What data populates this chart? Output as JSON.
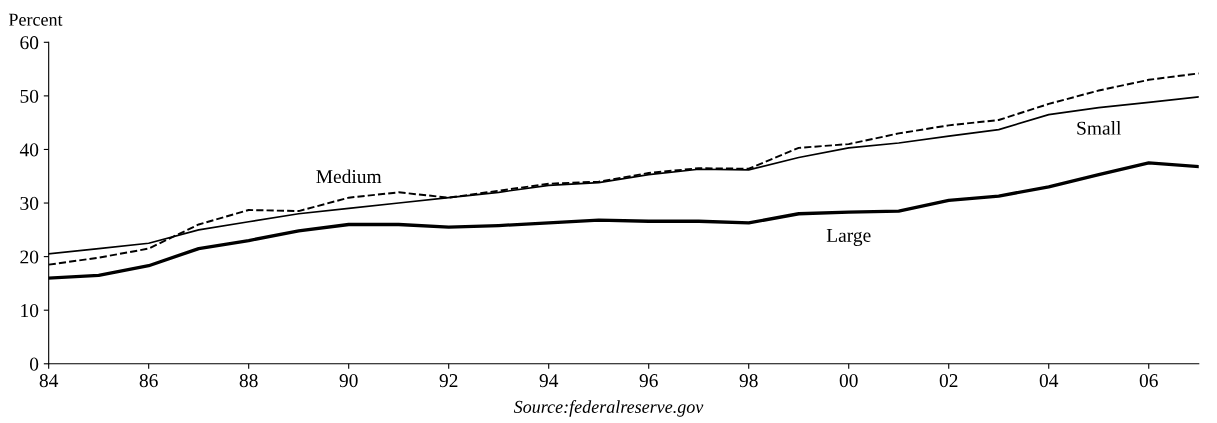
{
  "chart_data": {
    "type": "line",
    "ylabel": "Percent",
    "x": [
      1984,
      1985,
      1986,
      1987,
      1988,
      1989,
      1990,
      1991,
      1992,
      1993,
      1994,
      1995,
      1996,
      1997,
      1998,
      1999,
      2000,
      2001,
      2002,
      2003,
      2004,
      2005,
      2006,
      2007
    ],
    "series": [
      {
        "name": "Medium",
        "color": "#000000",
        "line_style": "dashed",
        "values": [
          18.5,
          19.8,
          21.5,
          26,
          28.7,
          28.5,
          31,
          32,
          31,
          32.3,
          33.6,
          34,
          35.6,
          36.5,
          36.4,
          40.3,
          41,
          43,
          44.5,
          45.5,
          48.5,
          51,
          53,
          54.2
        ]
      },
      {
        "name": "Small",
        "color": "#000000",
        "line_style": "solid",
        "values": [
          20.5,
          21.5,
          22.5,
          25,
          26.5,
          28,
          29,
          30,
          31,
          32,
          33.3,
          33.8,
          35.3,
          36.3,
          36.2,
          38.5,
          40.3,
          41.2,
          42.5,
          43.7,
          46.5,
          47.8,
          48.8,
          49.8
        ]
      },
      {
        "name": "Large",
        "color": "#000000",
        "line_style": "solid",
        "values": [
          16,
          16.5,
          18.3,
          21.5,
          23,
          24.8,
          26,
          26,
          25.5,
          25.8,
          26.3,
          26.8,
          26.6,
          26.6,
          26.3,
          28,
          28.3,
          28.5,
          30.5,
          31.3,
          33,
          35.3,
          37.5,
          36.8
        ]
      }
    ],
    "xlim": [
      1984,
      2007
    ],
    "xticks": [
      {
        "value": 1984,
        "label": "84"
      },
      {
        "value": 1986,
        "label": "86"
      },
      {
        "value": 1988,
        "label": "88"
      },
      {
        "value": 1990,
        "label": "90"
      },
      {
        "value": 1992,
        "label": "92"
      },
      {
        "value": 1994,
        "label": "94"
      },
      {
        "value": 1996,
        "label": "96"
      },
      {
        "value": 1998,
        "label": "98"
      },
      {
        "value": 2000,
        "label": "00"
      },
      {
        "value": 2002,
        "label": "02"
      },
      {
        "value": 2004,
        "label": "04"
      },
      {
        "value": 2006,
        "label": "06"
      }
    ],
    "ylim": [
      0,
      60
    ],
    "yticks": [
      0,
      10,
      20,
      30,
      40,
      50,
      60
    ],
    "grid": false,
    "legend": false,
    "marker": "none",
    "annotations": [
      "Source:federalreserve.gov"
    ]
  }
}
